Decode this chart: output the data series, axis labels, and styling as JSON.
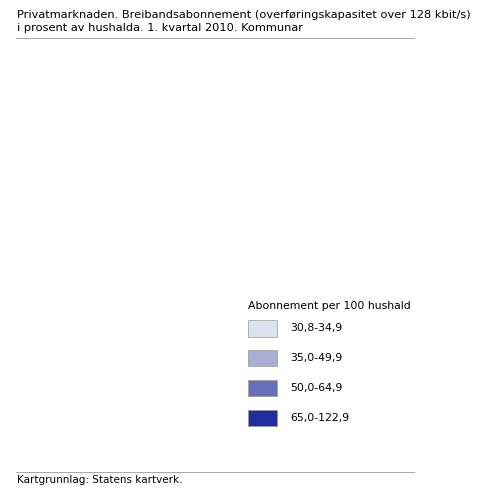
{
  "title_line1": "Privatmarknaden. Breibandsabonnement (overføringskapasitet over 128 kbit/s)",
  "title_line2": "i prosent av hushalda. 1. kvartal 2010. Kommunar",
  "legend_title": "Abonnement per 100 hushald",
  "legend_entries": [
    {
      "label": "30,8-34,9",
      "color": "#dde0ef"
    },
    {
      "label": "35,0-49,9",
      "color": "#a8aed4"
    },
    {
      "label": "50,0-64,9",
      "color": "#6670b8"
    },
    {
      "label": "65,0-122,9",
      "color": "#1f2da0"
    }
  ],
  "footer": "Kartgrunnlag: Statens kartverk.",
  "background_color": "#ffffff",
  "title_fontsize": 8.2,
  "legend_fontsize": 7.8,
  "footer_fontsize": 7.5,
  "map_xlim": [
    4.0,
    31.5
  ],
  "map_ylim": [
    57.8,
    71.3
  ],
  "color_weights": [
    0.05,
    0.2,
    0.3,
    0.45
  ]
}
